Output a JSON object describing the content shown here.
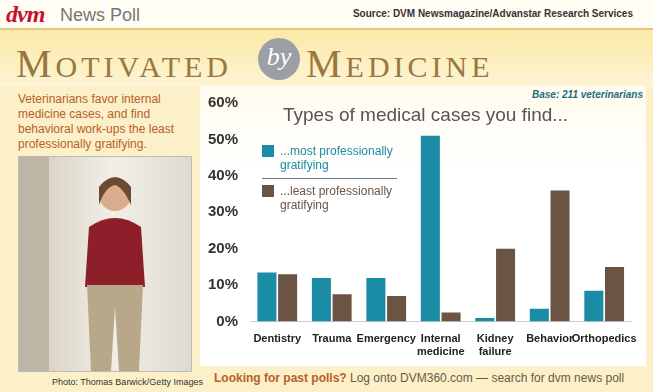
{
  "header": {
    "logo": "dvm",
    "label": "News Poll",
    "source": "Source: DVM Newsmagazine/Advanstar Research Services"
  },
  "headline": [
    "MOTIVATED",
    "by",
    "MEDICINE"
  ],
  "summary": "Veterinarians favor internal medicine cases, and find behavioral work-ups the least professionally gratifying.",
  "photo_credit": "Photo: Thomas Barwick/Getty Images",
  "footer": {
    "question": "Looking for past polls?",
    "text": "Log onto DVM360.com — search for dvm news poll"
  },
  "chart_data": {
    "type": "bar",
    "title": "Types of medical cases you find...",
    "annotation": "Base: 211 veterinarians",
    "categories": [
      "Dentistry",
      "Trauma",
      "Emergency",
      "Internal medicine",
      "Kidney failure",
      "Behavior",
      "Orthopedics"
    ],
    "series": [
      {
        "name": "...most professionally gratifying",
        "color": "#1a8ca6",
        "values": [
          13.5,
          12,
          12,
          51,
          1,
          3.5,
          8.5
        ]
      },
      {
        "name": "...least professionally gratifying",
        "color": "#6b5444",
        "values": [
          13,
          7.5,
          7,
          2.5,
          20,
          36,
          15
        ]
      }
    ],
    "ylim": [
      0,
      60
    ],
    "yticks": [
      {
        "value": 0,
        "label": "0%"
      },
      {
        "value": 10,
        "label": "10%"
      },
      {
        "value": 20,
        "label": "20%"
      },
      {
        "value": 30,
        "label": "30%"
      },
      {
        "value": 40,
        "label": "40%"
      },
      {
        "value": 50,
        "label": "50%"
      },
      {
        "value": 60,
        "label": "60%"
      }
    ],
    "grid": false,
    "legend": "upper left"
  }
}
